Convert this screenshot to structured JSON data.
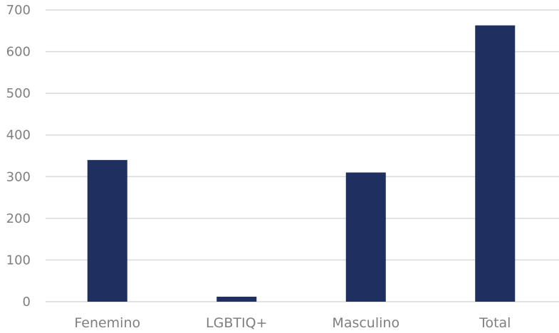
{
  "chart_data": {
    "type": "bar",
    "categories": [
      "Fenemino",
      "LGBTIQ+",
      "Masculino",
      "Total"
    ],
    "values": [
      340,
      12,
      310,
      663
    ],
    "ylim": [
      0,
      700
    ],
    "yticks": [
      0,
      100,
      200,
      300,
      400,
      500,
      600,
      700
    ],
    "title": "",
    "xlabel": "",
    "ylabel": "",
    "grid": true,
    "legend": "none",
    "bar_color": "#1f2f5f"
  }
}
